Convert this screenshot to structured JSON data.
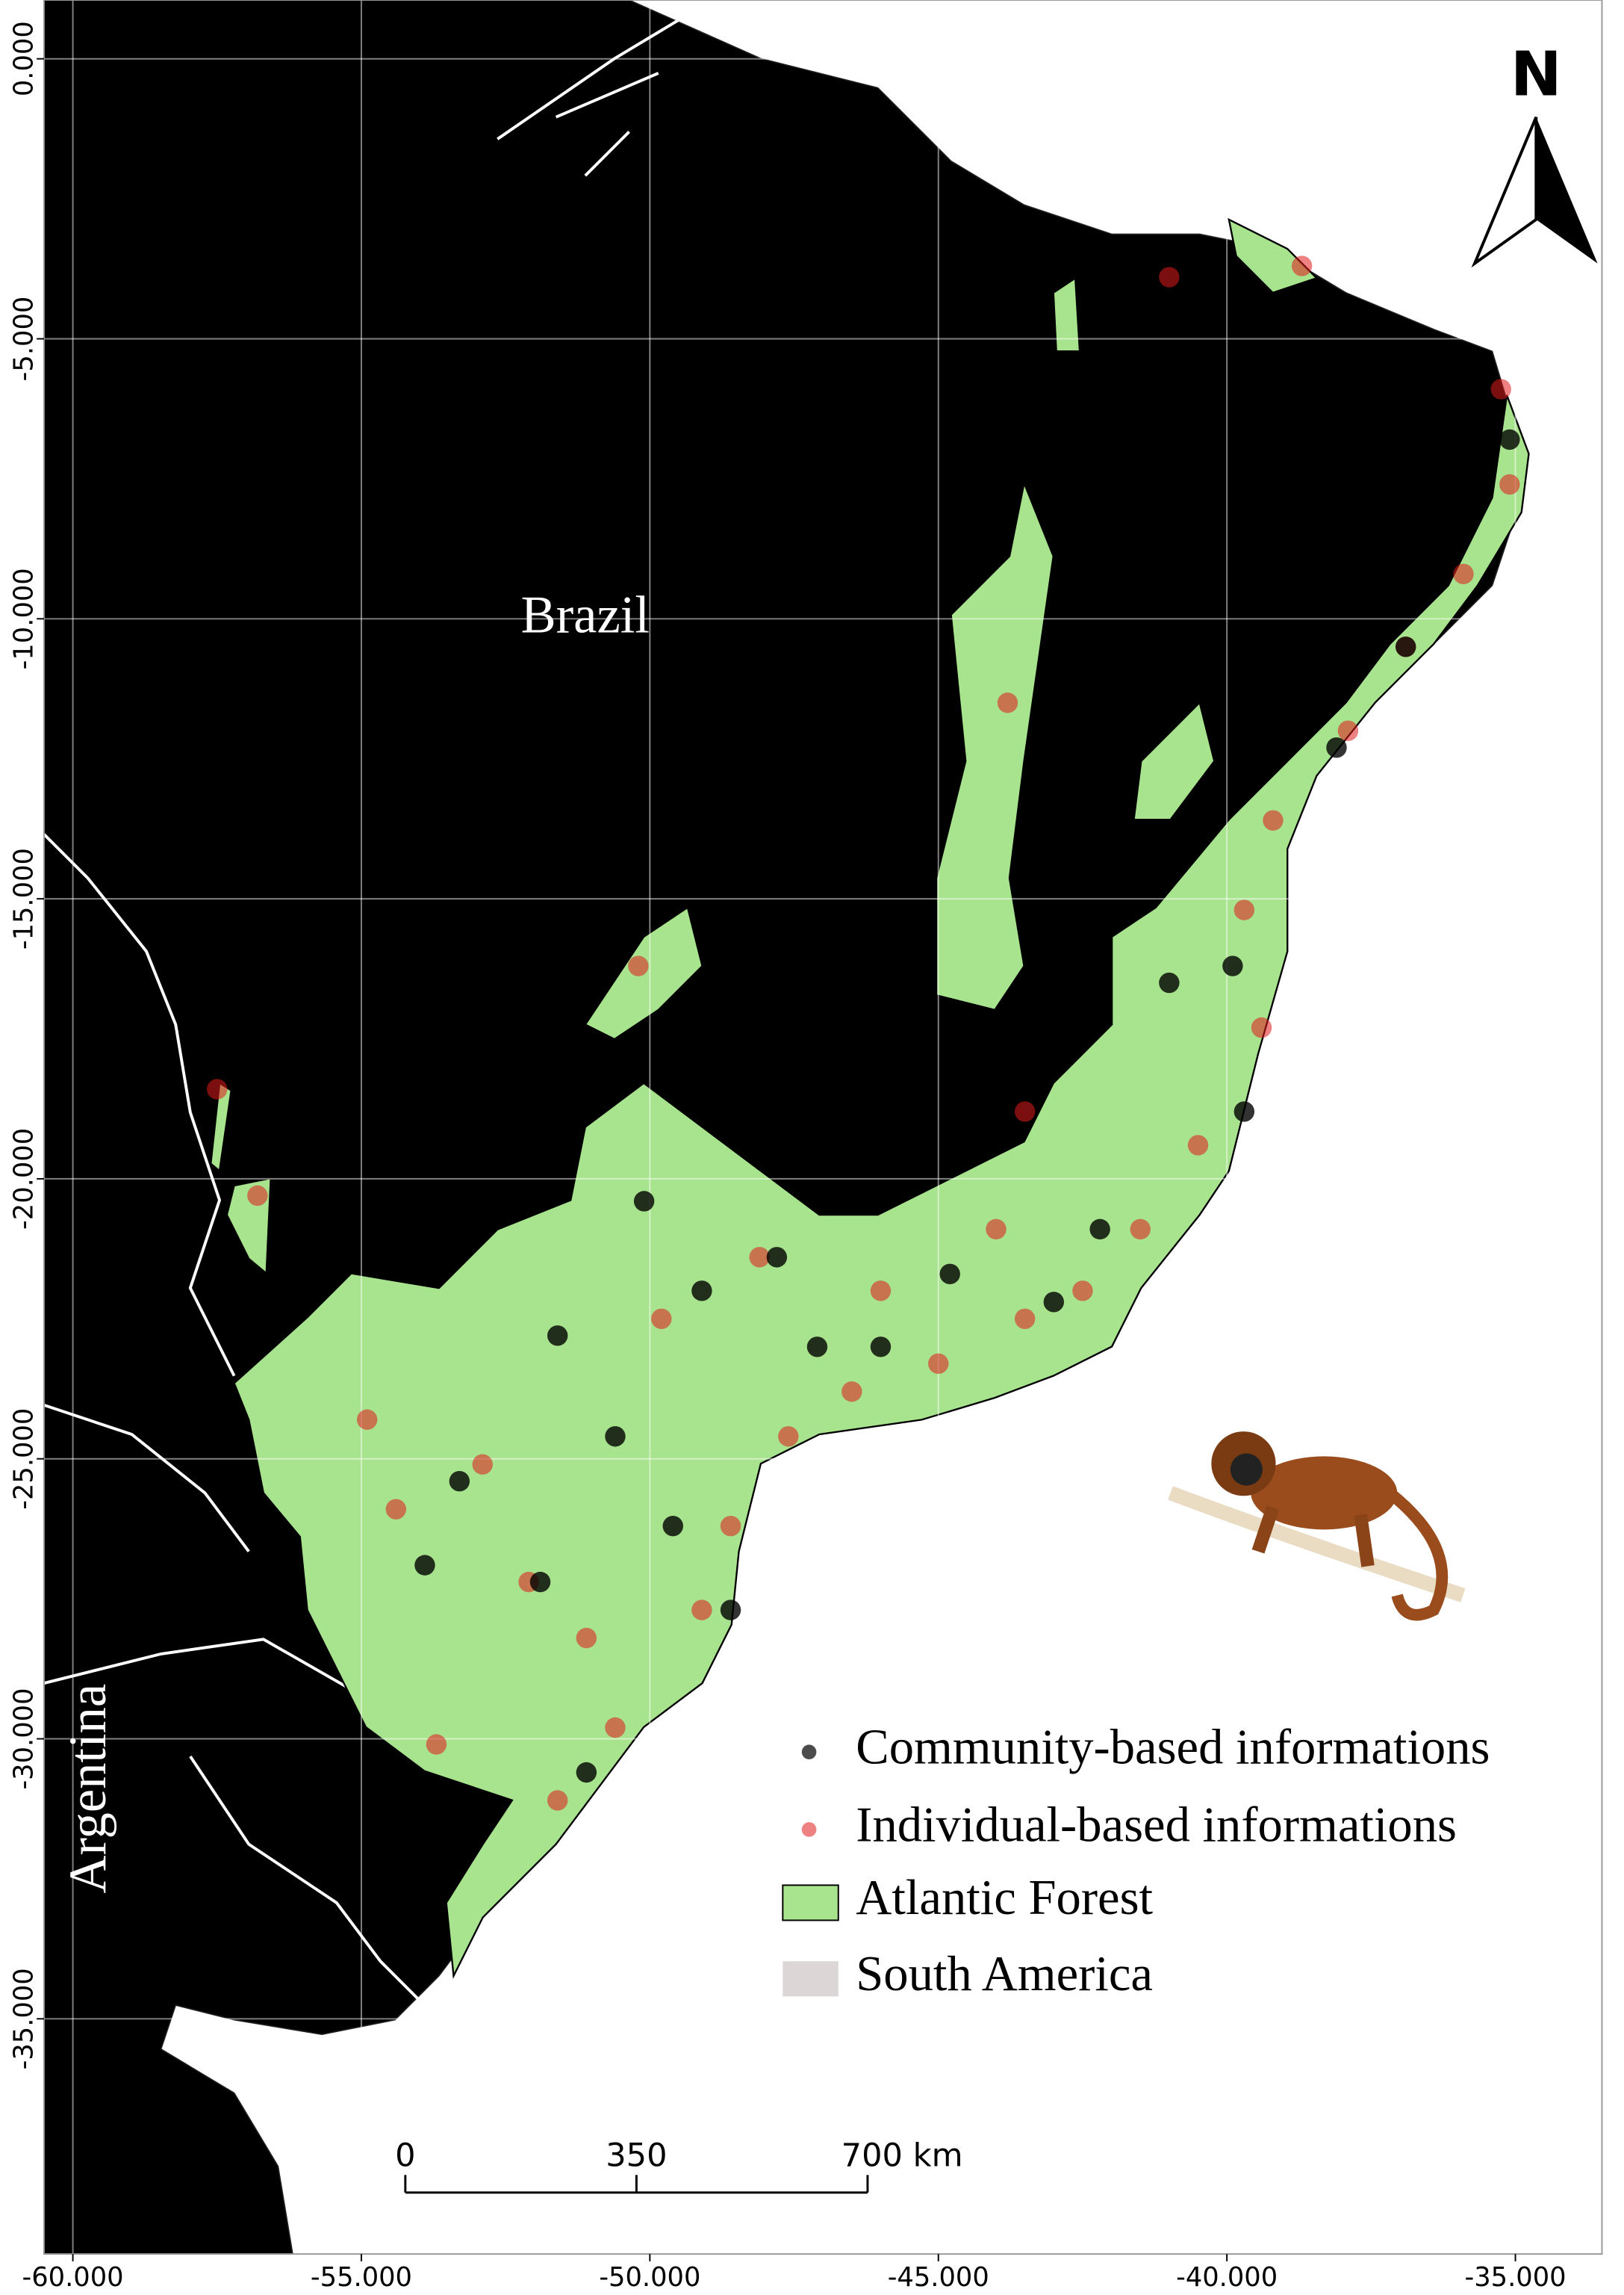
{
  "map": {
    "xlim": [
      -60.5,
      -33.5
    ],
    "ylim": [
      -39.2,
      1.05
    ],
    "xticks": [
      {
        "value": -60,
        "label": "-60.000"
      },
      {
        "value": -55,
        "label": "-55.000"
      },
      {
        "value": -50,
        "label": "-50.000"
      },
      {
        "value": -45,
        "label": "-45.000"
      },
      {
        "value": -40,
        "label": "-40.000"
      },
      {
        "value": -35,
        "label": "-35.000"
      }
    ],
    "yticks": [
      {
        "value": 0,
        "label": "0.000"
      },
      {
        "value": -5,
        "label": "-5.000"
      },
      {
        "value": -10,
        "label": "-10.000"
      },
      {
        "value": -15,
        "label": "-15.000"
      },
      {
        "value": -20,
        "label": "-20.000"
      },
      {
        "value": -25,
        "label": "-25.000"
      },
      {
        "value": -30,
        "label": "-30.000"
      },
      {
        "value": -35,
        "label": "-35.000"
      }
    ],
    "grid": true,
    "place_labels": [
      "Brazil",
      "Argentina"
    ],
    "north": "N",
    "scale_bar": [
      {
        "value": 0,
        "label": "0"
      },
      {
        "value": 350,
        "label": "350"
      },
      {
        "value": 700,
        "label": "700 km"
      }
    ],
    "layers": [
      {
        "name": "Atlantic Forest",
        "color": "#a8e38d"
      },
      {
        "name": "South America",
        "color": "#dcd6d6"
      }
    ],
    "series": [
      {
        "name": "Community-based informations",
        "color": "#000000",
        "x": [
          -35.1,
          -36.9,
          -38.1,
          -39.9,
          -41.0,
          -39.7,
          -42.2,
          -43.0,
          -46.0,
          -47.1,
          -49.1,
          -50.1,
          -50.6,
          -49.6,
          -48.6,
          -53.3,
          -53.9,
          -51.9,
          -51.1,
          -47.8,
          -51.6,
          -44.8
        ],
        "y": [
          -6.8,
          -10.5,
          -12.3,
          -16.2,
          -16.5,
          -18.8,
          -20.9,
          -22.2,
          -23.0,
          -23.0,
          -22.0,
          -20.4,
          -24.6,
          -26.2,
          -27.7,
          -25.4,
          -26.9,
          -27.2,
          -30.6,
          -21.4,
          -22.8,
          -21.7
        ]
      },
      {
        "name": "Individual-based informations",
        "color": "#e0191b",
        "x": [
          -35.25,
          -35.1,
          -35.9,
          -36.9,
          -37.9,
          -39.2,
          -39.7,
          -39.4,
          -40.5,
          -41.5,
          -42.5,
          -43.5,
          -45.0,
          -46.5,
          -47.6,
          -48.6,
          -49.1,
          -50.6,
          -51.6,
          -53.7,
          -54.4,
          -52.9,
          -51.1,
          -49.8,
          -48.1,
          -46.0,
          -44.0,
          -43.5,
          -41.0,
          -38.7,
          -57.5,
          -56.8,
          -50.2,
          -43.8,
          -52.1,
          -54.9
        ],
        "y": [
          -5.9,
          -7.6,
          -9.2,
          -10.5,
          -12.0,
          -13.6,
          -15.2,
          -17.3,
          -19.4,
          -20.9,
          -22.0,
          -22.5,
          -23.3,
          -23.8,
          -24.6,
          -26.2,
          -27.7,
          -29.8,
          -31.1,
          -30.1,
          -25.9,
          -25.1,
          -28.2,
          -22.5,
          -21.4,
          -22.0,
          -20.9,
          -18.8,
          -3.9,
          -3.7,
          -18.4,
          -20.3,
          -16.2,
          -11.5,
          -27.2,
          -24.3
        ]
      }
    ]
  }
}
